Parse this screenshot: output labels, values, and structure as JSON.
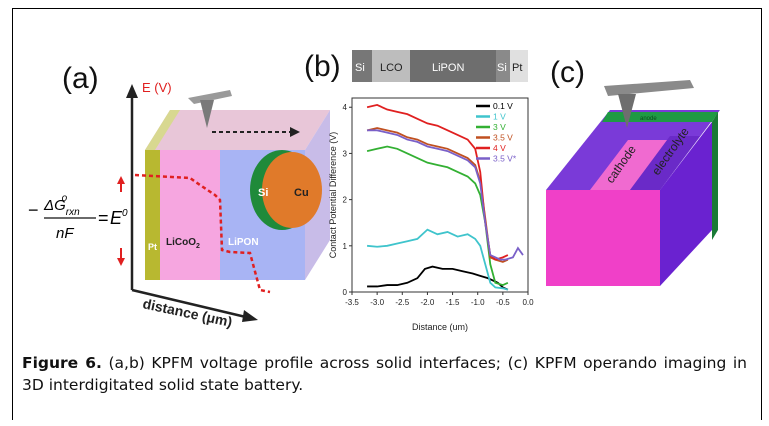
{
  "figure": {
    "panel_a": {
      "label": "(a)",
      "axis_y_label": "E (V)",
      "axis_x_label": "distance (μm)",
      "layers": [
        "Pt",
        "LiCoO",
        "LiPON",
        "Si",
        "Cu"
      ],
      "licoo_subscript": "2",
      "equation_num_main": "ΔG",
      "equation_num_sub": "rxn",
      "equation_num_sup": "o",
      "equation_den": "nF",
      "equation_rhs_main": "E",
      "equation_rhs_sup": "0",
      "equation_minus": "−",
      "equation_eq": "="
    },
    "panel_b": {
      "label": "(b)",
      "strip_labels": [
        "Si",
        "LCO",
        "LiPON",
        "Si",
        "Pt"
      ]
    },
    "panel_c": {
      "label": "(c)",
      "cathode_label": "cathode",
      "electrolyte_label": "electrolyte",
      "top_label": "anode"
    },
    "caption": {
      "label": "Figure 6.",
      "text": " (a,b) KPFM voltage profile across solid interfaces; (c) KPFM operando imaging in 3D interdigitated solid state battery."
    }
  },
  "chart_data": {
    "type": "line",
    "xlabel": "Distance (um)",
    "ylabel": "Contact Potential Difference (V)",
    "xlim": [
      -3.5,
      0.0
    ],
    "ylim": [
      0,
      4.2
    ],
    "xticks": [
      -3.5,
      -3.0,
      -2.5,
      -2.0,
      -1.5,
      -1.0,
      -0.5,
      0.0
    ],
    "xtick_labels": [
      "-3.5",
      "-3.0",
      "-2.5",
      "-2.0",
      "-1.5",
      "-1.0",
      "-0.5",
      "0.0"
    ],
    "yticks": [
      0,
      1,
      2,
      3,
      4
    ],
    "ytick_labels": [
      "0",
      "1",
      "2",
      "3",
      "4"
    ],
    "legend_placement": "top-right",
    "series": [
      {
        "name": "0.1 V",
        "color": "#000000",
        "x": [
          -3.2,
          -3.0,
          -2.8,
          -2.6,
          -2.4,
          -2.2,
          -2.05,
          -1.9,
          -1.7,
          -1.5,
          -1.3,
          -1.1,
          -0.95,
          -0.8,
          -0.7,
          -0.6,
          -0.5,
          -0.4
        ],
        "y": [
          0.12,
          0.12,
          0.15,
          0.15,
          0.2,
          0.3,
          0.5,
          0.55,
          0.5,
          0.5,
          0.45,
          0.4,
          0.35,
          0.3,
          0.25,
          0.2,
          0.1,
          0.05
        ]
      },
      {
        "name": "1 V",
        "color": "#3fc4cc",
        "x": [
          -3.2,
          -3.0,
          -2.8,
          -2.6,
          -2.4,
          -2.2,
          -2.0,
          -1.8,
          -1.6,
          -1.4,
          -1.2,
          -1.05,
          -0.95,
          -0.85,
          -0.75,
          -0.65,
          -0.5,
          -0.4
        ],
        "y": [
          1.0,
          0.98,
          1.0,
          1.05,
          1.1,
          1.15,
          1.35,
          1.25,
          1.3,
          1.2,
          1.25,
          1.15,
          1.0,
          0.6,
          0.2,
          0.1,
          0.08,
          0.05
        ]
      },
      {
        "name": "3 V",
        "color": "#33b033",
        "x": [
          -3.2,
          -3.0,
          -2.8,
          -2.6,
          -2.4,
          -2.2,
          -2.0,
          -1.8,
          -1.6,
          -1.4,
          -1.2,
          -1.05,
          -0.95,
          -0.85,
          -0.75,
          -0.65,
          -0.5,
          -0.4
        ],
        "y": [
          3.05,
          3.1,
          3.15,
          3.1,
          3.0,
          2.9,
          2.8,
          2.75,
          2.7,
          2.6,
          2.5,
          2.35,
          2.1,
          1.5,
          0.6,
          0.2,
          0.15,
          0.2
        ]
      },
      {
        "name": "3.5 V",
        "color": "#c05020",
        "x": [
          -3.2,
          -3.0,
          -2.8,
          -2.6,
          -2.4,
          -2.2,
          -2.0,
          -1.8,
          -1.6,
          -1.4,
          -1.2,
          -1.05,
          -0.95,
          -0.85,
          -0.75,
          -0.65,
          -0.5,
          -0.4
        ],
        "y": [
          3.5,
          3.55,
          3.5,
          3.45,
          3.35,
          3.3,
          3.2,
          3.15,
          3.1,
          3.0,
          2.9,
          2.75,
          2.4,
          1.6,
          0.75,
          0.7,
          0.65,
          0.7
        ]
      },
      {
        "name": "4 V",
        "color": "#e02020",
        "x": [
          -3.2,
          -3.0,
          -2.8,
          -2.6,
          -2.4,
          -2.2,
          -2.0,
          -1.8,
          -1.6,
          -1.4,
          -1.2,
          -1.05,
          -0.95,
          -0.85,
          -0.75,
          -0.65,
          -0.5,
          -0.4
        ],
        "y": [
          4.0,
          4.05,
          3.95,
          3.9,
          3.85,
          3.75,
          3.65,
          3.6,
          3.5,
          3.4,
          3.3,
          3.1,
          2.6,
          1.5,
          0.8,
          0.7,
          0.75,
          0.8
        ]
      },
      {
        "name": "3.5 V*",
        "color": "#7a60c8",
        "x": [
          -3.2,
          -3.0,
          -2.8,
          -2.6,
          -2.4,
          -2.2,
          -2.0,
          -1.8,
          -1.6,
          -1.4,
          -1.2,
          -1.05,
          -0.95,
          -0.85,
          -0.75,
          -0.65,
          -0.55,
          -0.45,
          -0.3,
          -0.2,
          -0.1
        ],
        "y": [
          3.5,
          3.5,
          3.45,
          3.4,
          3.3,
          3.25,
          3.15,
          3.1,
          3.05,
          2.95,
          2.85,
          2.7,
          2.35,
          1.5,
          0.8,
          0.75,
          0.7,
          0.7,
          0.75,
          0.95,
          0.8
        ]
      }
    ]
  }
}
